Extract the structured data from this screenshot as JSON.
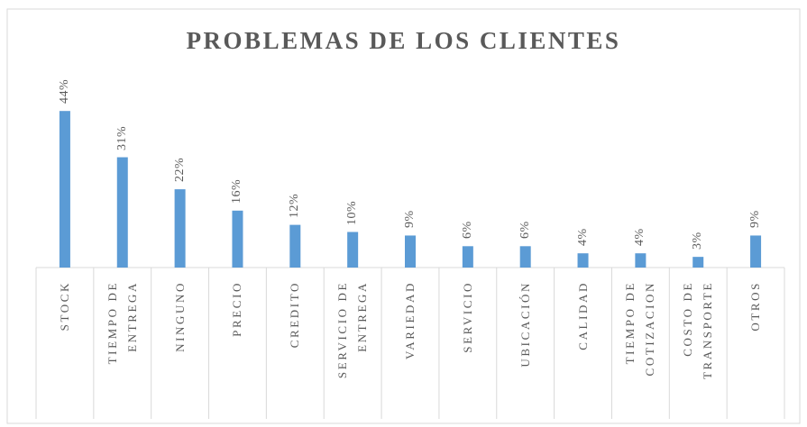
{
  "chart_data": {
    "type": "bar",
    "title": "PROBLEMAS DE LOS CLIENTES",
    "categories": [
      "STOCK",
      "TIEMPO DE ENTREGA",
      "NINGUNO",
      "PRECIO",
      "CREDITO",
      "SERVICIO DE ENTREGA",
      "VARIEDAD",
      "SERVICIO",
      "UBICACIÓN",
      "CALIDAD",
      "TIEMPO DE COTIZACION",
      "COSTO DE TRANSPORTE",
      "OTROS"
    ],
    "values": [
      44,
      31,
      22,
      16,
      12,
      10,
      9,
      6,
      6,
      4,
      4,
      3,
      9
    ],
    "value_labels": [
      "44%",
      "31%",
      "22%",
      "16%",
      "12%",
      "10%",
      "9%",
      "6%",
      "6%",
      "4%",
      "4%",
      "3%",
      "9%"
    ],
    "color": "#5b9bd5"
  }
}
